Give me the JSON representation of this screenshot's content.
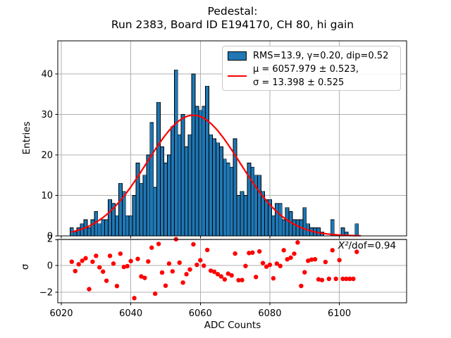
{
  "title": {
    "line1": "Pedestal:",
    "line2": "Run 2383, Board ID E194170, CH 80, hi gain"
  },
  "colors": {
    "bar_fill": "#1f77b4",
    "bar_edge": "#000000",
    "fit_line": "#ff0000",
    "residual_marker": "#ff0000",
    "grid": "#b0b0b0",
    "axes": "#000000",
    "legend_border": "#c9c9c9"
  },
  "x_axis": {
    "label": "ADC Counts",
    "ticks": [
      6020,
      6040,
      6060,
      6080,
      6100
    ]
  },
  "main_plot": {
    "ylabel": "Entries",
    "yticks": [
      0,
      10,
      20,
      30,
      40
    ]
  },
  "residual_plot": {
    "ylabel": "σ",
    "yticks": [
      2,
      0,
      -2
    ],
    "annotation_chi": "X²",
    "annotation_rest": "/dof=0.94"
  },
  "legend": {
    "hist_label": "RMS=13.9, γ=0.20, dip=0.52",
    "fit_label_line1": "μ = 6057.979 ± 0.523,",
    "fit_label_line2": "σ = 13.398 ± 0.525"
  },
  "chart_data": [
    {
      "type": "bar",
      "title": "Pedestal: Run 2383, Board ID E194170, CH 80, hi gain",
      "xlabel": "ADC Counts",
      "ylabel": "Entries",
      "xlim": [
        6019.0,
        6119.5
      ],
      "ylim": [
        0,
        48.2
      ],
      "grid": true,
      "legend_position": "upper right",
      "bin_width": 1,
      "bin_centers": [
        6023,
        6024,
        6025,
        6026,
        6027,
        6028,
        6029,
        6030,
        6031,
        6032,
        6033,
        6034,
        6035,
        6036,
        6037,
        6038,
        6039,
        6040,
        6041,
        6042,
        6043,
        6044,
        6045,
        6046,
        6047,
        6048,
        6049,
        6050,
        6051,
        6052,
        6053,
        6054,
        6055,
        6056,
        6057,
        6058,
        6059,
        6060,
        6061,
        6062,
        6063,
        6064,
        6065,
        6066,
        6067,
        6068,
        6069,
        6070,
        6071,
        6072,
        6073,
        6074,
        6075,
        6076,
        6077,
        6078,
        6079,
        6080,
        6081,
        6082,
        6083,
        6084,
        6085,
        6086,
        6087,
        6088,
        6089,
        6090,
        6091,
        6092,
        6093,
        6094,
        6095,
        6096,
        6097,
        6098,
        6099,
        6100,
        6101,
        6102,
        6103,
        6104,
        6105
      ],
      "counts": [
        2,
        1,
        2,
        3,
        4,
        2,
        4,
        6,
        3,
        4,
        4,
        9,
        8,
        5,
        13,
        11,
        5,
        5,
        10,
        18,
        13,
        15,
        20,
        28,
        12,
        33,
        22,
        18,
        20,
        27,
        41,
        25,
        30,
        22,
        25,
        40,
        32,
        31,
        32,
        37,
        25,
        24,
        23,
        22,
        19,
        18,
        17,
        24,
        10,
        11,
        10,
        18,
        17,
        15,
        15,
        11,
        9,
        9,
        5,
        8,
        8,
        4,
        7,
        6,
        4,
        4,
        4,
        7,
        3,
        2,
        2,
        2,
        1,
        0,
        0,
        4,
        0,
        0,
        2,
        1,
        0,
        0,
        3
      ],
      "fit_curve": {
        "type": "gaussian",
        "amplitude": 29.8,
        "mu": 6057.979,
        "mu_err": 0.523,
        "sigma": 13.398,
        "sigma_err": 0.525,
        "x_range": [
          6023,
          6106
        ]
      },
      "legend_entries": [
        "RMS=13.9, γ=0.20, dip=0.52",
        "μ = 6057.979 ± 0.523, σ = 13.398 ± 0.525"
      ]
    },
    {
      "type": "scatter",
      "ylabel": "σ",
      "xlim": [
        6019.0,
        6119.5
      ],
      "ylim": [
        -2.8,
        1.95
      ],
      "grid": true,
      "annotation": "X²/dof=0.94",
      "x": [
        6023,
        6024,
        6025,
        6026,
        6027,
        6028,
        6029,
        6030,
        6031,
        6032,
        6033,
        6034,
        6035,
        6036,
        6037,
        6038,
        6039,
        6040,
        6041,
        6042,
        6043,
        6044,
        6045,
        6046,
        6047,
        6048,
        6049,
        6050,
        6051,
        6052,
        6053,
        6054,
        6055,
        6056,
        6057,
        6058,
        6059,
        6060,
        6061,
        6062,
        6063,
        6064,
        6065,
        6066,
        6067,
        6068,
        6069,
        6070,
        6071,
        6072,
        6073,
        6074,
        6075,
        6076,
        6077,
        6078,
        6079,
        6080,
        6081,
        6082,
        6083,
        6084,
        6085,
        6086,
        6087,
        6088,
        6089,
        6090,
        6091,
        6092,
        6093,
        6094,
        6095,
        6096,
        6097,
        6098,
        6099,
        6100,
        6101,
        6102,
        6103,
        6104,
        6105
      ],
      "y": [
        0.28,
        -0.42,
        0.09,
        0.35,
        0.54,
        -1.77,
        0.28,
        0.72,
        -0.14,
        -0.46,
        -1.14,
        0.72,
        0.14,
        -1.54,
        0.88,
        -0.11,
        -0.05,
        0.33,
        -2.44,
        0.49,
        -0.82,
        -0.93,
        0.3,
        1.33,
        -2.11,
        1.61,
        -0.53,
        -1.51,
        0.14,
        -0.44,
        1.96,
        0.21,
        -1.28,
        -0.65,
        -0.3,
        1.58,
        0.05,
        0.39,
        -0.02,
        1.16,
        -0.39,
        -0.47,
        -0.65,
        -0.82,
        -1.04,
        -0.61,
        -0.74,
        0.89,
        -1.1,
        -1.09,
        -0.04,
        0.93,
        0.96,
        -0.86,
        1.05,
        0.18,
        -0.09,
        0.05,
        -0.96,
        0.14,
        -0.04,
        1.14,
        0.46,
        0.58,
        0.88,
        1.72,
        -1.53,
        -0.51,
        0.35,
        0.44,
        0.46,
        -1.04,
        -1.09,
        0.26,
        -1.0,
        1.14,
        -1.0,
        0.4,
        -1.0,
        -1.0,
        -1.0,
        -1.0,
        1.02
      ]
    }
  ]
}
